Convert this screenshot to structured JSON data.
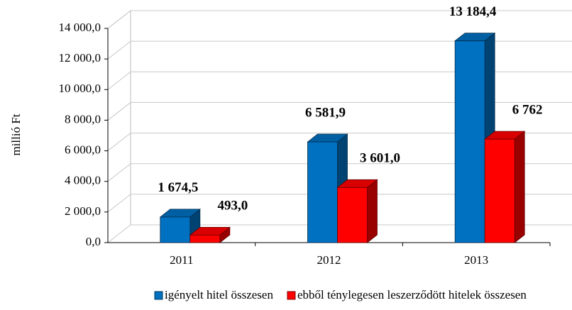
{
  "chart_data": {
    "type": "bar3d",
    "y_label": "millió Ft",
    "categories": [
      "2011",
      "2012",
      "2013"
    ],
    "series": [
      {
        "name": "igényelt hitel összesen",
        "color": "#0070c0",
        "values": [
          1674.5,
          6581.9,
          13184.4
        ],
        "value_labels": [
          "1 674,5",
          "6 581,9",
          "13 184,4"
        ]
      },
      {
        "name": "ebből ténylegesen leszerződött hitelek összesen",
        "color": "#ff0000",
        "values": [
          493.0,
          3601.0,
          6762
        ],
        "value_labels": [
          "493,0",
          "3 601,0",
          "6 762"
        ]
      }
    ],
    "ylim": [
      0,
      14000
    ],
    "yticks": [
      {
        "value": 0,
        "label": "0,0"
      },
      {
        "value": 2000,
        "label": "2 000,0"
      },
      {
        "value": 4000,
        "label": "4 000,0"
      },
      {
        "value": 6000,
        "label": "6 000,0"
      },
      {
        "value": 8000,
        "label": "8 000,0"
      },
      {
        "value": 10000,
        "label": "10 000,0"
      },
      {
        "value": 12000,
        "label": "12 000,0"
      },
      {
        "value": 14000,
        "label": "14 000,0"
      }
    ],
    "grid": true,
    "legend": "bottom"
  }
}
